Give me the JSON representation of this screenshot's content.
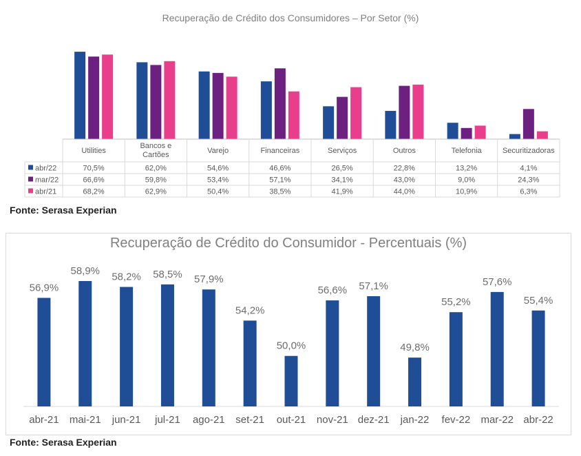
{
  "chart_data": [
    {
      "type": "bar",
      "title": "Recuperação de Crédito dos Consumidores – Por Setor (%)",
      "categories": [
        "Utilities",
        "Bancos e Cartões",
        "Varejo",
        "Financeiras",
        "Serviços",
        "Outros",
        "Telefonia",
        "Securitizadoras"
      ],
      "series": [
        {
          "name": "abr/22",
          "color": "#1f4e96",
          "values": [
            70.5,
            62.0,
            54.6,
            46.6,
            26.5,
            22.8,
            13.2,
            4.1
          ],
          "labels": [
            "70,5%",
            "62,0%",
            "54,6%",
            "46,6%",
            "26,5%",
            "22,8%",
            "13,2%",
            "4,1%"
          ]
        },
        {
          "name": "mar/22",
          "color": "#6c2180",
          "values": [
            66.6,
            59.8,
            53.4,
            57.1,
            34.1,
            43.0,
            9.0,
            24.3
          ],
          "labels": [
            "66,6%",
            "59,8%",
            "53,4%",
            "57,1%",
            "34,1%",
            "43,0%",
            "9,0%",
            "24,3%"
          ]
        },
        {
          "name": "abr/21",
          "color": "#e83e8c",
          "values": [
            68.2,
            62.9,
            50.4,
            38.5,
            41.9,
            44.0,
            10.9,
            6.3
          ],
          "labels": [
            "68,2%",
            "62,9%",
            "50,4%",
            "38,5%",
            "41,9%",
            "44,0%",
            "10,9%",
            "6,3%"
          ]
        }
      ],
      "ylim": [
        0,
        75
      ],
      "grid": false,
      "legend": "data-table",
      "source": "Fonte: Serasa Experian"
    },
    {
      "type": "bar",
      "title": "Recuperação de Crédito do Consumidor - Percentuais (%)",
      "categories": [
        "abr-21",
        "mai-21",
        "jun-21",
        "jul-21",
        "ago-21",
        "set-21",
        "out-21",
        "nov-21",
        "dez-21",
        "jan-22",
        "fev-22",
        "mar-22",
        "abr-22"
      ],
      "values": [
        56.9,
        58.9,
        58.2,
        58.5,
        57.9,
        54.2,
        50.0,
        56.6,
        57.1,
        49.8,
        55.2,
        57.6,
        55.4
      ],
      "labels": [
        "56,9%",
        "58,9%",
        "58,2%",
        "58,5%",
        "57,9%",
        "54,2%",
        "50,0%",
        "56,6%",
        "57,1%",
        "49,8%",
        "55,2%",
        "57,6%",
        "55,4%"
      ],
      "color": "#1f4e96",
      "ylim": [
        44,
        60
      ],
      "grid": false,
      "source": "Fonte: Serasa Experian"
    }
  ]
}
